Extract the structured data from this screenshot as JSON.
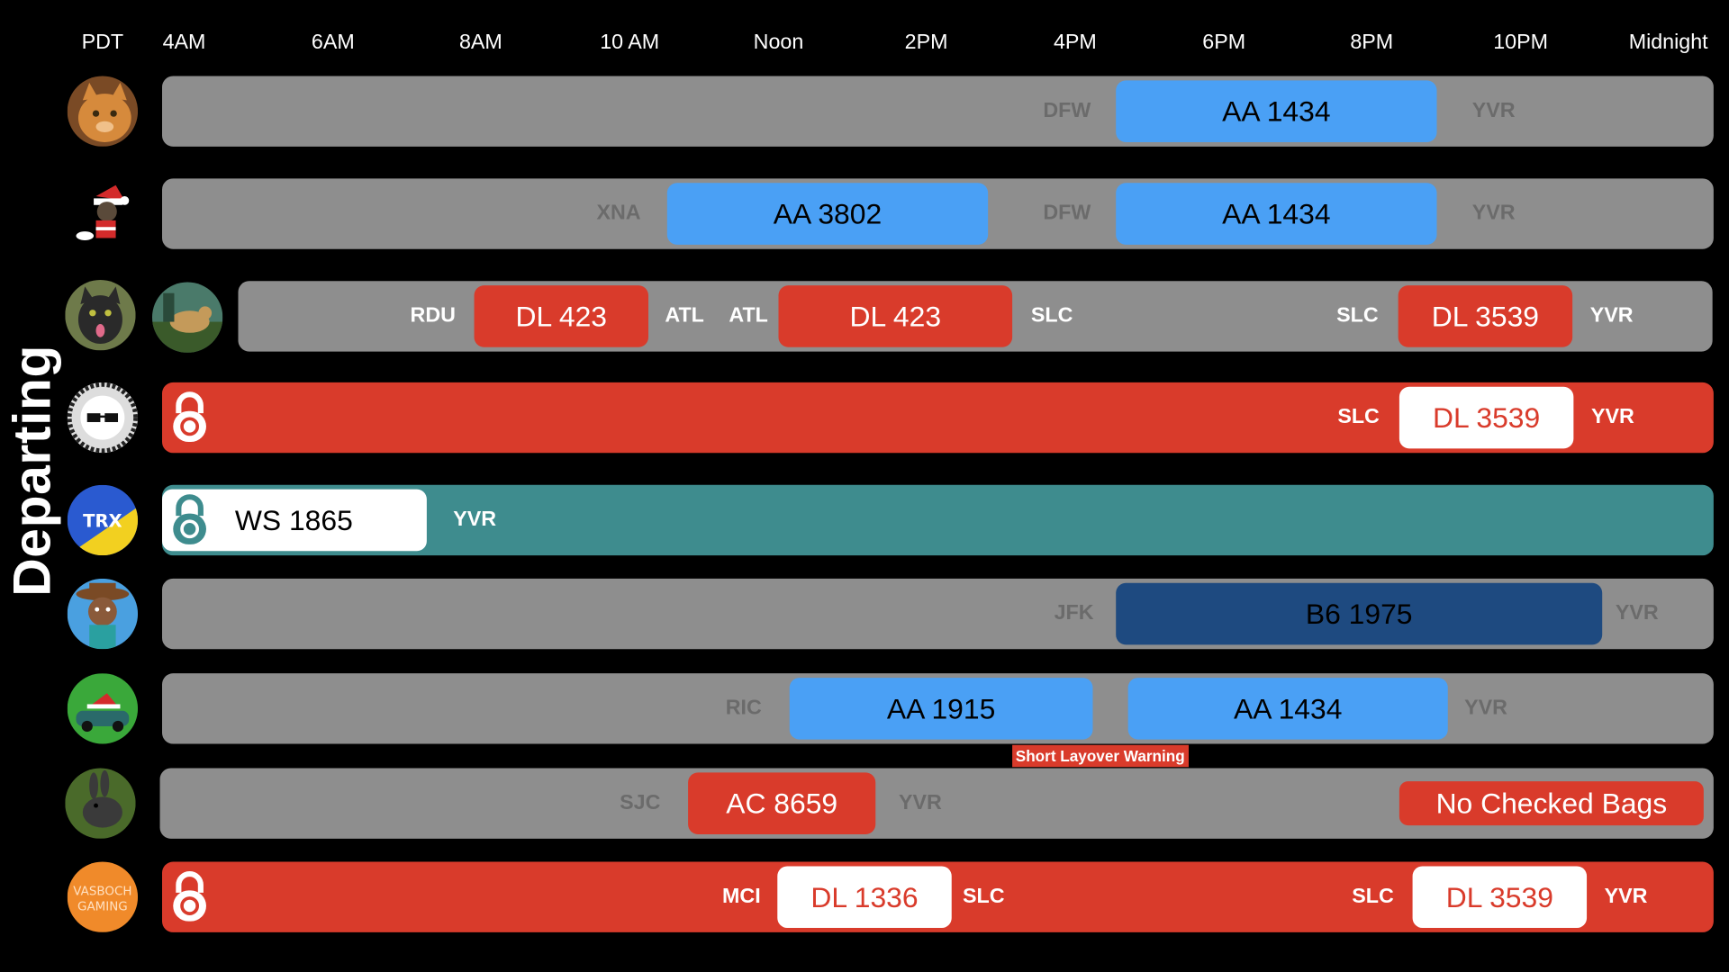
{
  "title": "Departing",
  "timezone": "PDT",
  "hours": [
    "4AM",
    "6AM",
    "8AM",
    "10 AM",
    "Noon",
    "2PM",
    "4PM",
    "6PM",
    "8PM",
    "10PM",
    "Midnight"
  ],
  "rows": [
    {
      "from": "DFW",
      "flight": "AA 1434",
      "to": "YVR"
    },
    {
      "from1": "XNA",
      "flight1": "AA 3802",
      "from2": "DFW",
      "flight2": "AA 1434",
      "to": "YVR"
    },
    {
      "from1": "RDU",
      "flight1": "DL 423",
      "to1": "ATL",
      "from2": "ATL",
      "flight2": "DL 423",
      "to2": "SLC",
      "from3": "SLC",
      "flight3": "DL 3539",
      "to": "YVR"
    },
    {
      "from": "SLC",
      "flight": "DL 3539",
      "to": "YVR"
    },
    {
      "flight": "WS 1865",
      "to": "YVR"
    },
    {
      "from": "JFK",
      "flight": "B6 1975",
      "to": "YVR"
    },
    {
      "from": "RIC",
      "flight1": "AA 1915",
      "flight2": "AA 1434",
      "to": "YVR",
      "warning": "Short Layover Warning"
    },
    {
      "from": "SJC",
      "flight": "AC 8659",
      "to": "YVR",
      "note": "No Checked Bags"
    },
    {
      "from1": "MCI",
      "flight1": "DL 1336",
      "to1": "SLC",
      "from2": "SLC",
      "flight2": "DL 3539",
      "to": "YVR"
    }
  ],
  "avatar_logo_text": "VASBOCH GAMING",
  "icons": [
    "lock-icon"
  ],
  "colors": {
    "american": "#4aa0f5",
    "jetblue": "#1e4a80",
    "delta": "#d93b2b",
    "westjet": "#3e8c8e",
    "track": "#8e8e8e"
  }
}
